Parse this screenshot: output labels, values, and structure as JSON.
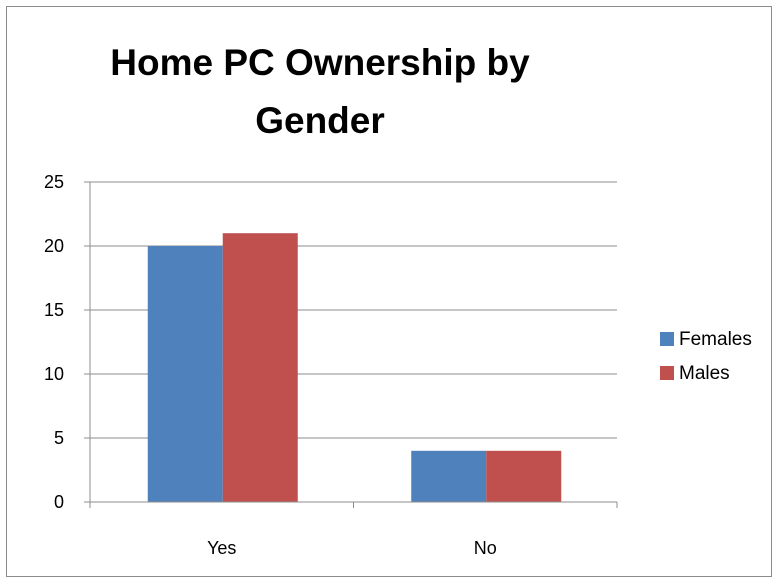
{
  "chart_data": {
    "type": "bar",
    "title": "Home PC Ownership by Gender",
    "categories": [
      "Yes",
      "No"
    ],
    "series": [
      {
        "name": "Females",
        "values": [
          20,
          4
        ],
        "color": "#4f81bd"
      },
      {
        "name": "Males",
        "values": [
          21,
          4
        ],
        "color": "#c0504d"
      }
    ],
    "xlabel": "",
    "ylabel": "",
    "ylim": [
      0,
      25
    ],
    "yticks": [
      "0",
      "5",
      "10",
      "15",
      "20",
      "25"
    ],
    "grid": true,
    "legend": "right"
  }
}
